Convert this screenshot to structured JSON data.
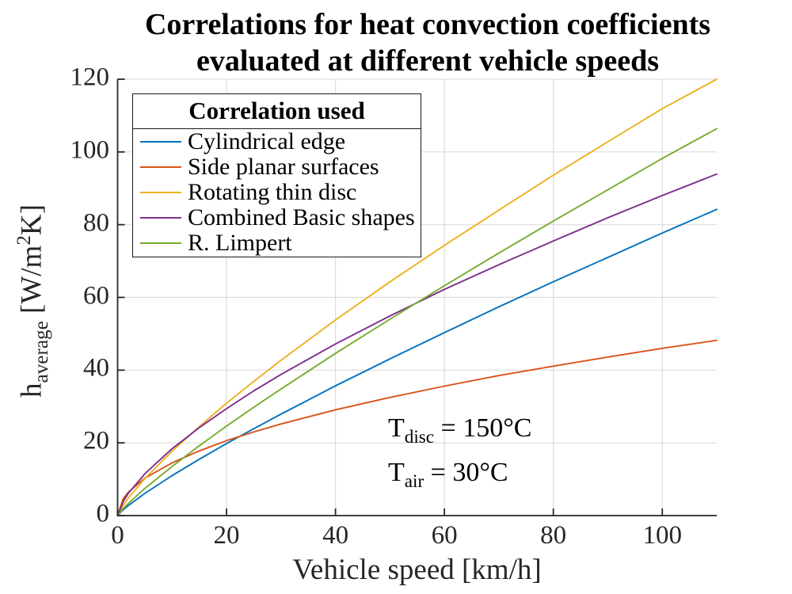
{
  "title": {
    "line1": "Correlations for heat convection coefficients",
    "line2": "evaluated at different vehicle speeds"
  },
  "axes": {
    "x_label": "Vehicle speed [km/h]",
    "y_label_base": "h",
    "y_label_sub": "average",
    "y_label_unit_pre": " [W/m",
    "y_label_unit_sup": "2",
    "y_label_unit_post": "K]"
  },
  "legend": {
    "title": "Correlation used"
  },
  "annotation": {
    "line1_base": "T",
    "line1_sub": "disc",
    "line1_rest": " = 150°C",
    "line2_base": "T",
    "line2_sub": "air",
    "line2_rest": " = 30°C"
  },
  "colors": {
    "axis": "#262626",
    "grid": "#dcdcdc",
    "background": "#ffffff"
  },
  "chart_data": {
    "type": "line",
    "title": "Correlations for heat convection coefficients evaluated at different vehicle speeds",
    "xlabel": "Vehicle speed [km/h]",
    "ylabel": "h_average [W/m^2 K]",
    "xlim": [
      0,
      110
    ],
    "ylim": [
      0,
      120
    ],
    "xticks": [
      0,
      20,
      40,
      60,
      80,
      100
    ],
    "yticks": [
      0,
      20,
      40,
      60,
      80,
      100,
      120
    ],
    "grid": true,
    "legend_title": "Correlation used",
    "legend_position": "top-left",
    "annotations": [
      "T_disc = 150°C",
      "T_air = 30°C"
    ],
    "x": [
      0,
      1,
      2,
      5,
      10,
      15,
      20,
      25,
      30,
      40,
      50,
      60,
      70,
      80,
      90,
      100,
      110
    ],
    "series": [
      {
        "name": "Cylindrical edge",
        "color": "#0072BD",
        "values": [
          0,
          1.6,
          2.8,
          6.1,
          11.0,
          15.5,
          19.8,
          23.9,
          27.9,
          35.7,
          43.1,
          50.3,
          57.4,
          64.3,
          71.0,
          77.7,
          84.2
        ]
      },
      {
        "name": "Side planar surfaces",
        "color": "#D95319",
        "values": [
          0,
          4.6,
          6.5,
          10.3,
          14.5,
          17.8,
          20.6,
          23.0,
          25.2,
          29.1,
          32.5,
          35.6,
          38.5,
          41.1,
          43.6,
          46.0,
          48.2
        ]
      },
      {
        "name": "Rotating thin disc",
        "color": "#EDB120",
        "values": [
          0,
          2.8,
          4.9,
          10.2,
          17.7,
          24.5,
          30.9,
          36.9,
          42.7,
          53.8,
          64.3,
          74.3,
          84.0,
          93.6,
          102.8,
          111.9,
          120.0
        ]
      },
      {
        "name": "Combined Basic shapes",
        "color": "#7E2F8E",
        "values": [
          0,
          3.8,
          6.2,
          11.5,
          18.4,
          24.2,
          29.4,
          34.3,
          38.8,
          47.2,
          54.9,
          62.2,
          69.0,
          75.5,
          81.9,
          88.0,
          93.9
        ]
      },
      {
        "name": "R. Limpert",
        "color": "#77AC30",
        "values": [
          0,
          1.9,
          3.4,
          7.5,
          13.5,
          19.2,
          24.6,
          29.8,
          34.8,
          44.6,
          54.0,
          63.2,
          72.2,
          81.0,
          89.6,
          98.2,
          106.4
        ]
      }
    ]
  }
}
